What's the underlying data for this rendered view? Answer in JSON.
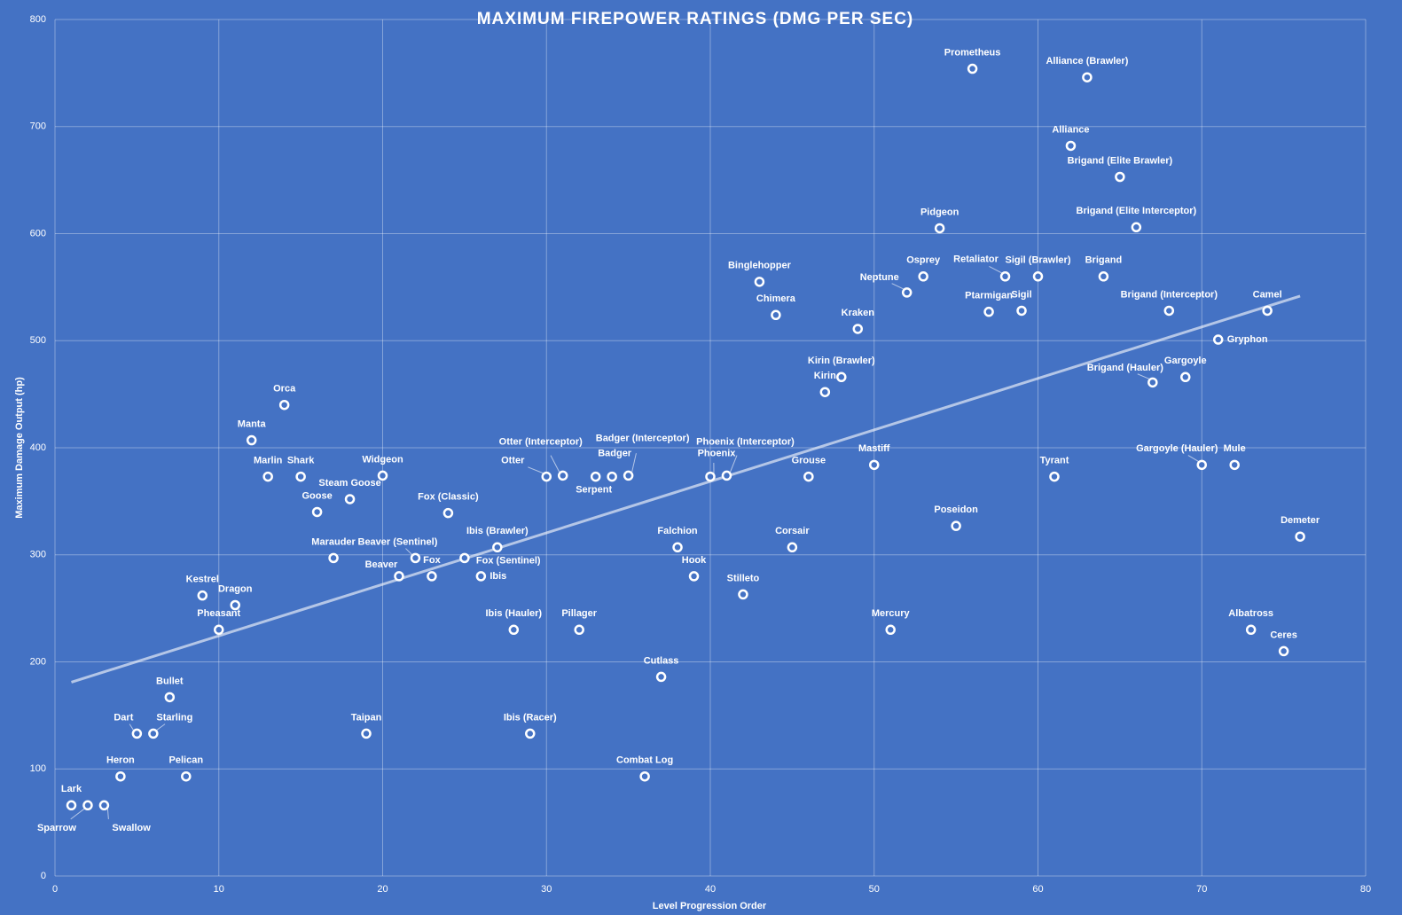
{
  "chart_data": {
    "type": "scatter",
    "title": "MAXIMUM FIREPOWER RATINGS (DMG PER SEC)",
    "x_label": "Level Progression Order",
    "y_label": "Maximum Damage Output (hp)",
    "xlim": [
      0,
      80
    ],
    "ylim": [
      0,
      800
    ],
    "xticks": [
      0,
      10,
      20,
      30,
      40,
      50,
      60,
      70,
      80
    ],
    "yticks": [
      0,
      100,
      200,
      300,
      400,
      500,
      600,
      700,
      800
    ],
    "grid": true,
    "trendline": true,
    "color": "#4472c4",
    "point_labels": [
      "Lark",
      "Sparrow",
      "Swallow",
      "Heron",
      "Dart",
      "Starling",
      "Bullet",
      "Pelican",
      "Kestrel",
      "Pheasant",
      "Dragon",
      "Manta",
      "Marlin",
      "Orca",
      "Shark",
      "Goose",
      "Marauder",
      "Steam Goose",
      "Taipan",
      "Widgeon",
      "Beaver",
      "Beaver (Sentinel)",
      "Fox",
      "Fox (Classic)",
      "Fox (Sentinel)",
      "Ibis",
      "Ibis (Brawler)",
      "Ibis (Hauler)",
      "Ibis (Racer)",
      "Otter",
      "Otter (Interceptor)",
      "Pillager",
      "Serpent",
      "Badger",
      "Badger (Interceptor)",
      "Combat Log",
      "Cutlass",
      "Falchion",
      "Hook",
      "Phoenix",
      "Phoenix (Interceptor)",
      "Stilleto",
      "Binglehopper",
      "Chimera",
      "Corsair",
      "Grouse",
      "Kirin",
      "Kirin (Brawler)",
      "Kraken",
      "Mastiff",
      "Mercury",
      "Neptune",
      "Osprey",
      "Pidgeon",
      "Poseidon",
      "Prometheus",
      "Ptarmigan",
      "Retaliator",
      "Sigil",
      "Sigil (Brawler)",
      "Tyrant",
      "Alliance",
      "Alliance (Brawler)",
      "Brigand",
      "Brigand (Elite Brawler)",
      "Brigand (Elite Interceptor)",
      "Brigand (Hauler)",
      "Brigand (Interceptor)",
      "Gargoyle",
      "Gargoyle (Hauler)",
      "Gryphon",
      "Mule",
      "Albatross",
      "Camel",
      "Ceres",
      "Demeter"
    ],
    "x": [
      1,
      2,
      3,
      4,
      5,
      6,
      7,
      8,
      9,
      10,
      11,
      12,
      13,
      14,
      15,
      16,
      17,
      18,
      19,
      20,
      21,
      22,
      23,
      24,
      25,
      26,
      27,
      28,
      29,
      30,
      31,
      32,
      33,
      34,
      35,
      36,
      37,
      38,
      39,
      40,
      41,
      42,
      43,
      44,
      45,
      46,
      47,
      48,
      49,
      50,
      51,
      52,
      53,
      54,
      55,
      56,
      57,
      58,
      59,
      60,
      61,
      62,
      63,
      64,
      65,
      66,
      67,
      68,
      69,
      70,
      71,
      72,
      73,
      74,
      75,
      76
    ],
    "values": [
      66,
      66,
      66,
      93,
      133,
      133,
      167,
      93,
      262,
      230,
      253,
      407,
      373,
      440,
      373,
      340,
      297,
      352,
      133,
      374,
      280,
      297,
      280,
      339,
      297,
      280,
      307,
      230,
      133,
      373,
      374,
      230,
      373,
      373,
      374,
      93,
      186,
      307,
      280,
      373,
      374,
      263,
      555,
      524,
      307,
      373,
      452,
      466,
      511,
      384,
      230,
      545,
      560,
      605,
      327,
      754,
      527,
      560,
      528,
      560,
      373,
      682,
      746,
      560,
      653,
      606,
      461,
      528,
      466,
      384,
      501,
      384,
      230,
      528,
      210,
      317
    ]
  }
}
